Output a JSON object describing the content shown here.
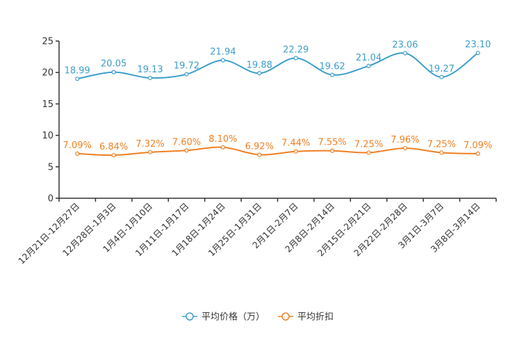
{
  "chart_data": {
    "type": "line",
    "categories": [
      "12月21日-12月27日",
      "12月28日-1月3日",
      "1月4日-1月10日",
      "1月11日-1月17日",
      "1月18日-1月24日",
      "1月25日-1月31日",
      "2月1日-2月7日",
      "2月8日-2月14日",
      "2月15日-2月21日",
      "2月22日-2月28日",
      "3月1日-3月7日",
      "3月8日-3月14日"
    ],
    "ylim": [
      0,
      25
    ],
    "yticks": [
      0,
      5,
      10,
      15,
      20,
      25
    ],
    "series": [
      {
        "name": "平均价格（万）",
        "color": "#3c9ecb",
        "values": [
          18.99,
          20.05,
          19.13,
          19.72,
          21.94,
          19.88,
          22.29,
          19.62,
          21.04,
          23.06,
          19.27,
          23.1
        ],
        "labels": [
          "18.99",
          "20.05",
          "19.13",
          "19.72",
          "21.94",
          "19.88",
          "22.29",
          "19.62",
          "21.04",
          "23.06",
          "19.27",
          "23.10"
        ]
      },
      {
        "name": "平均折扣",
        "color": "#f07f22",
        "values": [
          7.09,
          6.84,
          7.32,
          7.6,
          8.1,
          6.92,
          7.44,
          7.55,
          7.25,
          7.96,
          7.25,
          7.09
        ],
        "labels": [
          "7.09%",
          "6.84%",
          "7.32%",
          "7.60%",
          "8.10%",
          "6.92%",
          "7.44%",
          "7.55%",
          "7.25%",
          "7.96%",
          "7.25%",
          "7.09%"
        ]
      }
    ],
    "legend_position": "bottom-center"
  }
}
